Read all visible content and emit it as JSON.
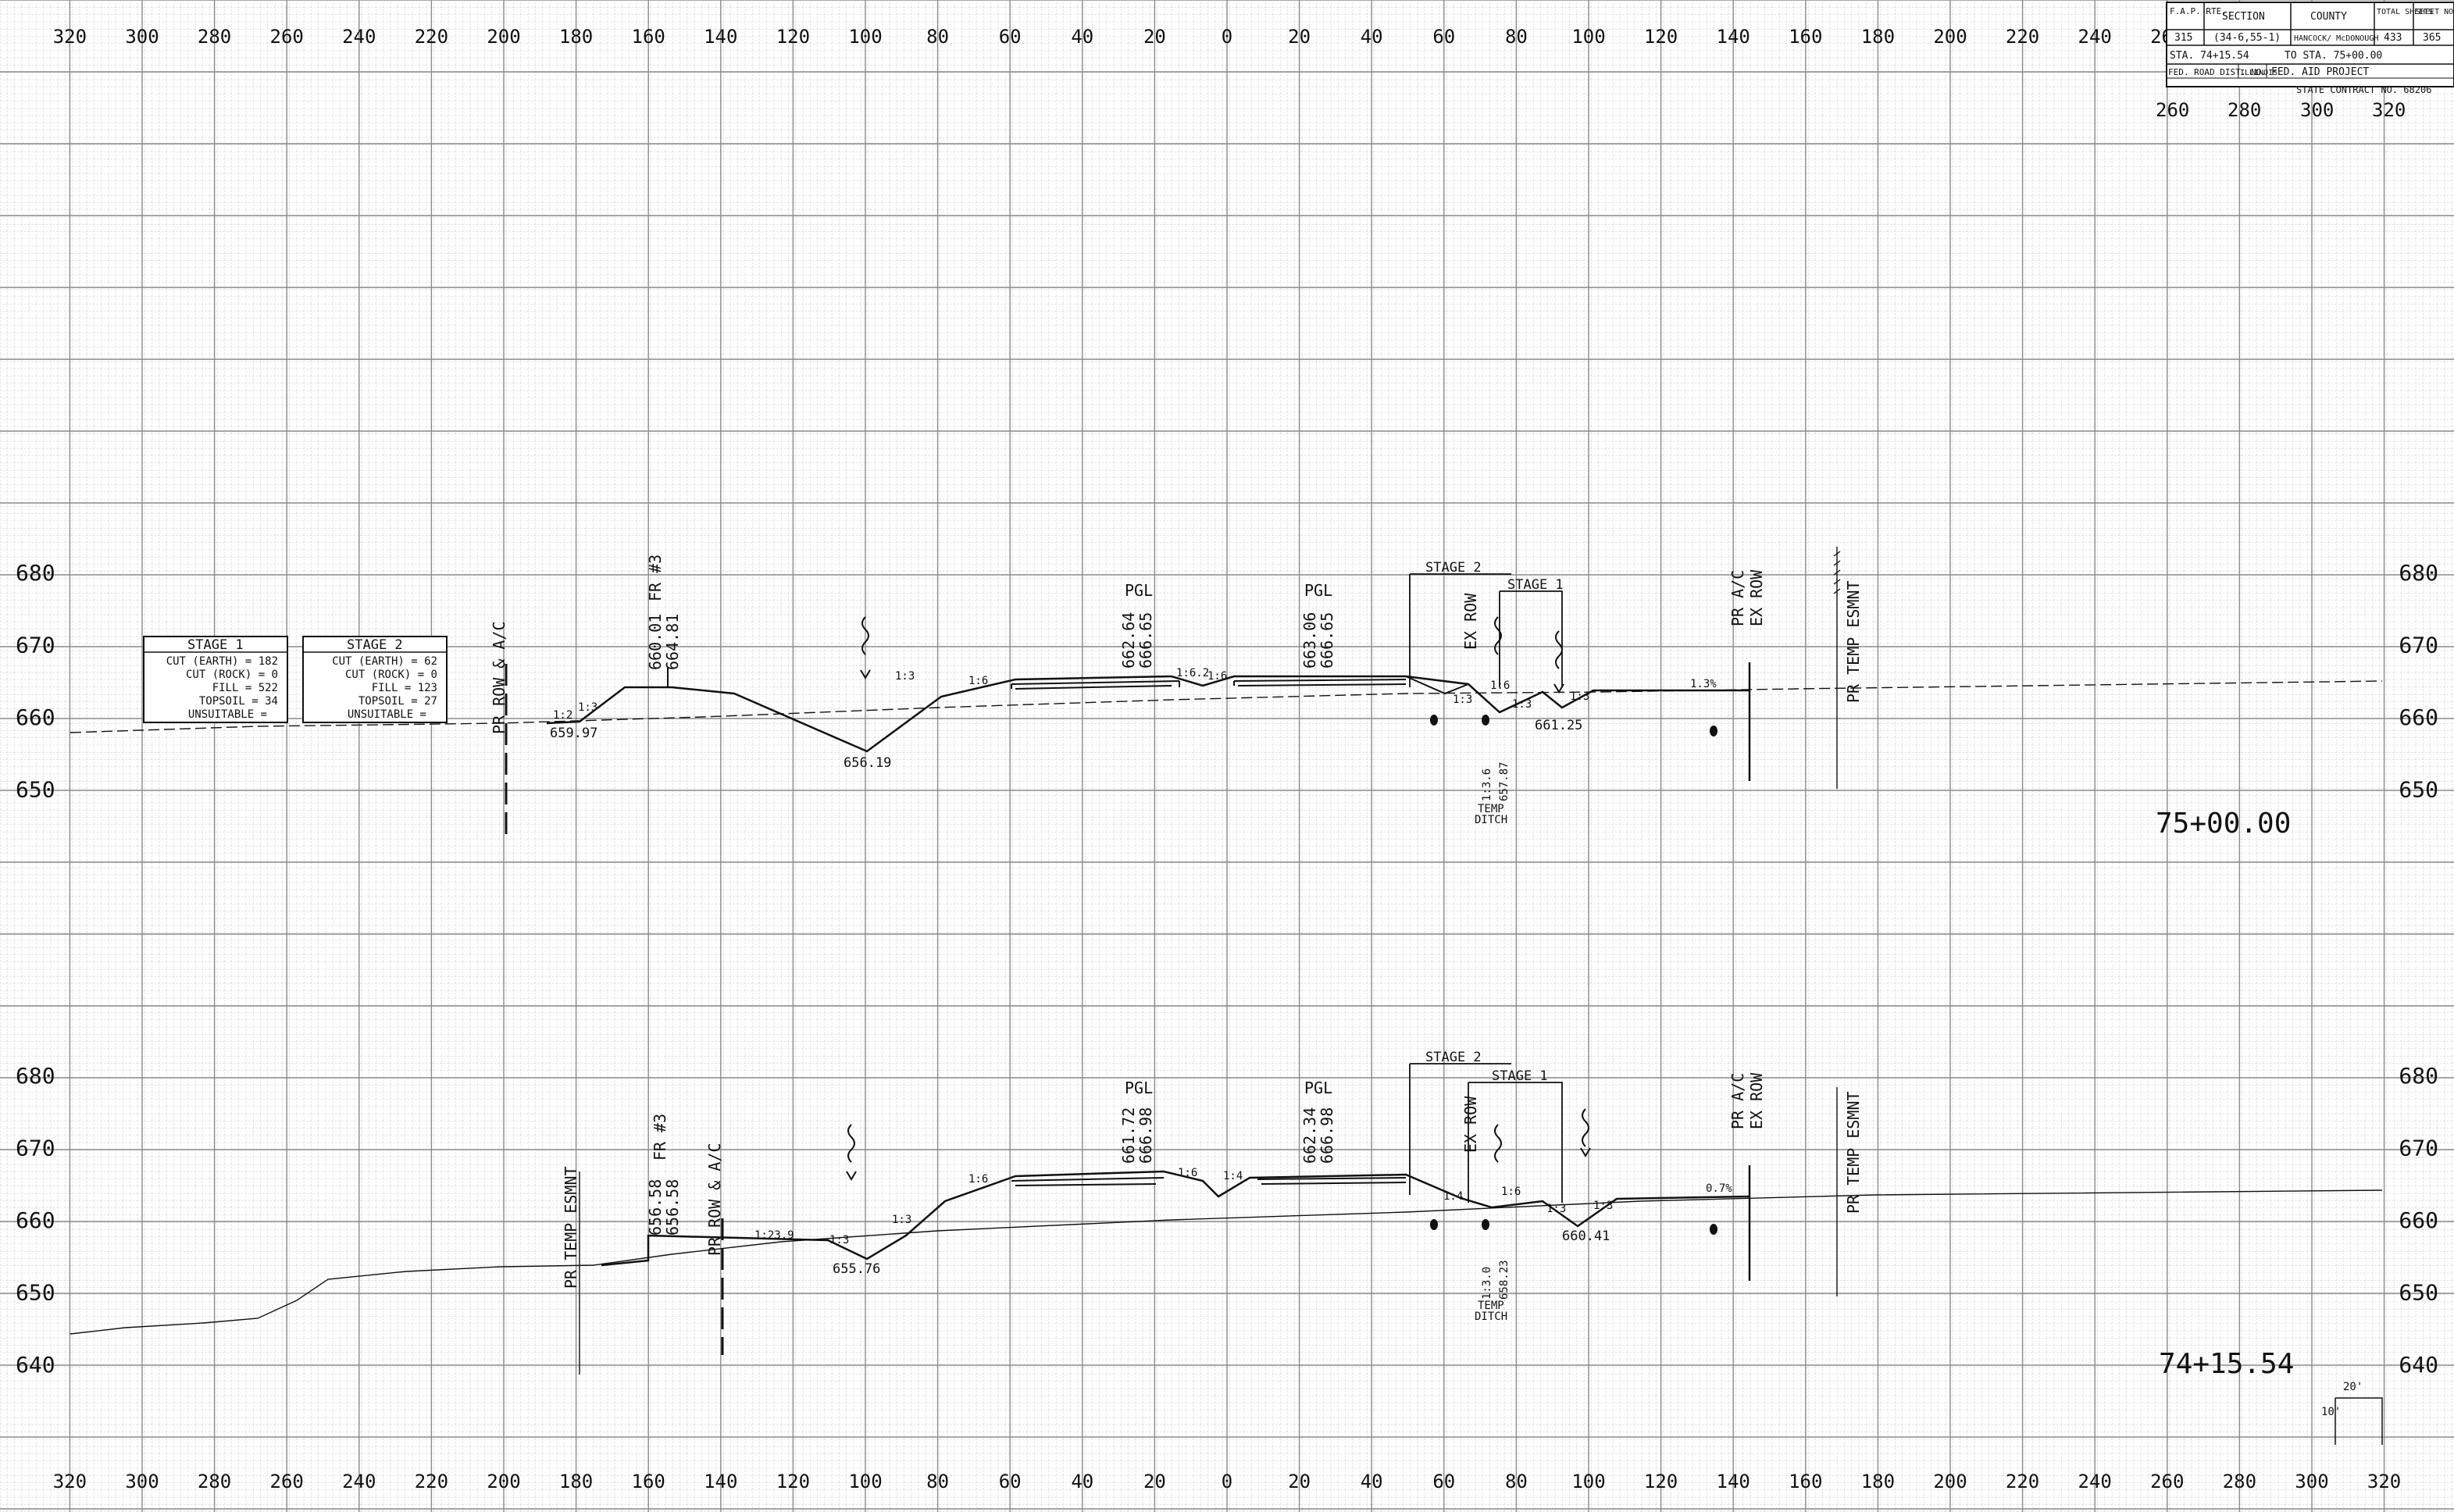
{
  "x_axis_labels": [
    "320",
    "300",
    "280",
    "260",
    "240",
    "220",
    "200",
    "180",
    "160",
    "140",
    "120",
    "100",
    "80",
    "60",
    "40",
    "20",
    "0",
    "20",
    "40",
    "60",
    "80",
    "100",
    "120",
    "140",
    "160",
    "180",
    "200",
    "220",
    "240",
    "260",
    "280",
    "300",
    "320"
  ],
  "x_axis_offsets": [
    -320,
    -300,
    -280,
    -260,
    -240,
    -220,
    -200,
    -180,
    -160,
    -140,
    -120,
    -100,
    -80,
    -60,
    -40,
    -20,
    0,
    20,
    40,
    60,
    80,
    100,
    120,
    140,
    160,
    180,
    200,
    220,
    240,
    260,
    280,
    300,
    320
  ],
  "title_block": {
    "h_rte": "F.A.P. RTE.",
    "h_section": "SECTION",
    "h_county": "COUNTY",
    "h_total": "TOTAL SHEETS",
    "h_sheet": "SHEET NO.",
    "rte": "315",
    "section": "(34-6,55-1)",
    "county": "HANCOCK/ McDONOUGH",
    "total": "433",
    "sheet": "365",
    "sta_from": "STA. 74+15.54",
    "sta_to": "TO STA. 75+00.00",
    "dist": "FED. ROAD DIST. NO.",
    "state": "ILLINOIS",
    "fed": "FED. AID PROJECT",
    "contract": "STATE CONTRACT NO. 68206",
    "upper_scale": [
      "260",
      "280",
      "300",
      "320"
    ]
  },
  "stage_tables": [
    {
      "title": "STAGE 1",
      "rows": [
        "CUT (EARTH) = 182",
        "CUT (ROCK) = 0",
        "FILL = 522",
        "TOPSOIL = 34",
        "UNSUITABLE ="
      ]
    },
    {
      "title": "STAGE 2",
      "rows": [
        "CUT (EARTH) = 62",
        "CUT (ROCK) = 0",
        "FILL = 123",
        "TOPSOIL = 27",
        "UNSUITABLE ="
      ]
    }
  ],
  "sections": [
    {
      "station": "75+00.00",
      "elevations": [
        {
          "label": "680",
          "value": 680
        },
        {
          "label": "670",
          "value": 670
        },
        {
          "label": "660",
          "value": 660
        },
        {
          "label": "650",
          "value": 650
        }
      ],
      "labels": {
        "pr_row": "PR ROW & A/C",
        "fr": "FR #3",
        "fr_e1": "660.01",
        "fr_e2": "664.81",
        "pgl_l": "PGL",
        "pgl_l_e1": "662.64",
        "pgl_l_e2": "666.65",
        "pgl_r": "PGL",
        "pgl_r_e1": "663.06",
        "pgl_r_e2": "666.65",
        "stage2": "STAGE 2",
        "stage1": "STAGE 1",
        "ex_row": "EX ROW",
        "pr_ac_r": "PR A/C",
        "ex_row_r": "EX ROW",
        "temp_esmnt": "PR TEMP ESMNT",
        "e_left": "659.97",
        "e_ditch": "656.19",
        "e_right": "661.25",
        "temp_ditch_elev": "657.87",
        "temp_ditch_slope": "1:3.6",
        "temp_ditch": "TEMP",
        "ditch": "DITCH",
        "slope_a": "1:2",
        "slope_b": "1:3",
        "slope_c": "1:3",
        "slope_d": "1:6",
        "slope_e": "1:6.2",
        "slope_f": "1:6",
        "slope_g": "1:3",
        "slope_h": "1:6",
        "slope_i": "1:3",
        "slope_j": "1:3",
        "cross_pct": "1.3%"
      }
    },
    {
      "station": "74+15.54",
      "elevations": [
        {
          "label": "680",
          "value": 680
        },
        {
          "label": "670",
          "value": 670
        },
        {
          "label": "660",
          "value": 660
        },
        {
          "label": "650",
          "value": 650
        },
        {
          "label": "640",
          "value": 640
        }
      ],
      "labels": {
        "temp_esmnt_l": "PR TEMP ESMNT",
        "fr": "FR #3",
        "fr_e1": "656.58",
        "fr_e2": "656.58",
        "pr_row": "PR ROW & A/C",
        "pgl_l": "PGL",
        "pgl_l_e1": "661.72",
        "pgl_l_e2": "666.98",
        "pgl_r": "PGL",
        "pgl_r_e1": "662.34",
        "pgl_r_e2": "666.98",
        "stage2": "STAGE 2",
        "stage1": "STAGE 1",
        "ex_row": "EX ROW",
        "pr_ac_r": "PR A/C",
        "ex_row_r": "EX ROW",
        "temp_esmnt": "PR TEMP ESMNT",
        "e_ditch": "655.76",
        "e_right": "660.41",
        "temp_ditch_elev": "658.23",
        "temp_ditch_slope": "1:3.0",
        "temp_ditch": "TEMP",
        "ditch": "DITCH",
        "slope_a": "1:23.9",
        "slope_b": "1:3",
        "slope_c": "1:3",
        "slope_d": "1:6",
        "slope_e": "1:6",
        "slope_f": "1:4",
        "slope_g": "1:4",
        "slope_h": "1:6",
        "slope_i": "1:3",
        "slope_j": "1:3",
        "cross_pct": "0.7%"
      }
    }
  ],
  "scale": {
    "h": "20'",
    "v": "10'"
  },
  "colors": {
    "ink": "#111111",
    "grid_minor": "#bdbdbd",
    "grid_major": "#8a8a8a",
    "paper": "#ffffff"
  }
}
